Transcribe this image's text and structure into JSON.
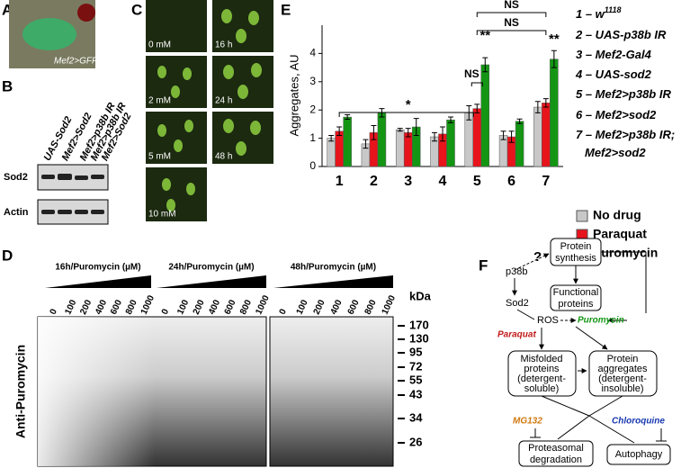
{
  "panel_labels": [
    "A",
    "B",
    "C",
    "D",
    "E",
    "F"
  ],
  "panel_a": {
    "caption": "Mef2>GFP"
  },
  "panel_b": {
    "columns": [
      "UAS-Sod2",
      "Mef2>Sod2",
      "Mef2>p38b IR",
      "Mef2>p38b IR",
      "Mef2>Sod2"
    ],
    "rows": [
      "Sod2",
      "Actin"
    ]
  },
  "panel_c": {
    "left": [
      "0 mM",
      "2 mM",
      "5 mM",
      "10 mM"
    ],
    "right": [
      "16 h",
      "24 h",
      "48 h"
    ]
  },
  "panel_d": {
    "groups": [
      "16h/Puromycin (µM)",
      "24h/Puromycin (µM)",
      "48h/Puromycin (µM)"
    ],
    "lanes": [
      "0",
      "100",
      "200",
      "400",
      "600",
      "800",
      "1000"
    ],
    "unit": "kDa",
    "markers": [
      "170",
      "130",
      "95",
      "72",
      "55",
      "43",
      "34",
      "26"
    ],
    "antibody": "Anti-Puromycin"
  },
  "chart_data": {
    "type": "bar",
    "y_label": "Aggregates, AU",
    "categories": [
      "1",
      "2",
      "3",
      "4",
      "5",
      "6",
      "7"
    ],
    "series": [
      {
        "name": "No drug",
        "color": "#c8c8c8",
        "values": [
          1.0,
          0.8,
          1.3,
          1.05,
          1.9,
          1.1,
          2.1
        ],
        "errors": [
          0.1,
          0.15,
          0.05,
          0.15,
          0.25,
          0.15,
          0.2
        ]
      },
      {
        "name": "Paraquat",
        "color": "#e8141c",
        "values": [
          1.25,
          1.2,
          1.2,
          1.15,
          2.05,
          1.05,
          2.25
        ],
        "errors": [
          0.15,
          0.25,
          0.15,
          0.25,
          0.15,
          0.2,
          0.15
        ]
      },
      {
        "name": "Puromycin",
        "color": "#149614",
        "values": [
          1.75,
          1.9,
          1.4,
          1.65,
          3.6,
          1.6,
          3.8
        ],
        "errors": [
          0.08,
          0.15,
          0.3,
          0.1,
          0.25,
          0.08,
          0.3
        ]
      }
    ],
    "ylim": [
      0,
      5
    ],
    "yticks": [
      0,
      1,
      2,
      3,
      4
    ],
    "annotations": [
      "*",
      "NS",
      "NS",
      "NS",
      "**",
      "**"
    ],
    "genotypes": [
      {
        "label": "1 – w",
        "sup": "1118"
      },
      {
        "label": "2 – UAS-p38b IR"
      },
      {
        "label": "3 – Mef2-Gal4"
      },
      {
        "label": "4 – UAS-sod2"
      },
      {
        "label": "5 – Mef2>p38b IR"
      },
      {
        "label": "6 – Mef2>sod2"
      },
      {
        "label": "7 – Mef2>p38b IR;"
      },
      {
        "label": "Mef2>sod2"
      }
    ]
  },
  "panel_f": {
    "question": "?",
    "synthesis": [
      "Protein",
      "synthesis"
    ],
    "p38b": "p38b",
    "sod2": "Sod2",
    "functional": [
      "Functional",
      "proteins"
    ],
    "ros": "ROS",
    "puromycin": "Puromycin",
    "paraquat": "Paraquat",
    "misfolded": [
      "Misfolded",
      "proteins",
      "(detergent-",
      "soluble)"
    ],
    "aggregates": [
      "Protein",
      "aggregates",
      "(detergent-",
      "insoluble)"
    ],
    "mg132": "MG132",
    "chloroquine": "Chloroquine",
    "proteasomal": [
      "Proteasomal",
      "degradation"
    ],
    "autophagy": "Autophagy"
  }
}
